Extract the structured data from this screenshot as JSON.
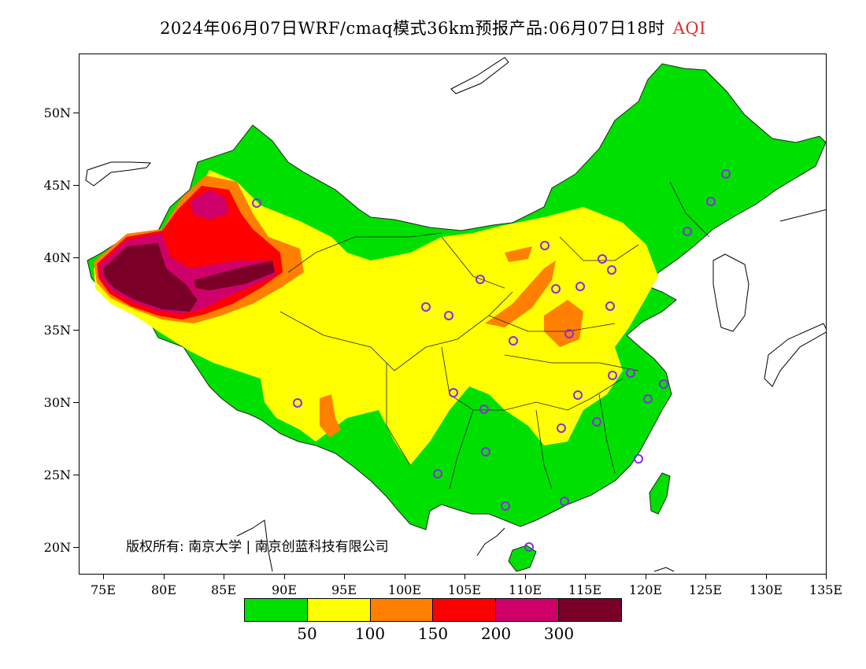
{
  "title": {
    "text": "2024年06月07日WRF/cmaq模式36km预报产品:06月07日18时",
    "variable": "AQI"
  },
  "map": {
    "lat_labels": [
      "50N",
      "45N",
      "40N",
      "35N",
      "30N",
      "25N",
      "20N"
    ],
    "lon_labels": [
      "75E",
      "80E",
      "85E",
      "90E",
      "95E",
      "100E",
      "105E",
      "110E",
      "115E",
      "120E",
      "125E",
      "130E",
      "135E"
    ],
    "copyright": "版权所有: 南京大学 | 南京创蓝科技有限公司",
    "station_marker_color": "#8a2be2"
  },
  "legend": {
    "colors": [
      "#00e000",
      "#ffff00",
      "#ff8000",
      "#ff0000",
      "#d0006a",
      "#7a0028"
    ],
    "labels": [
      "50",
      "100",
      "150",
      "200",
      "300"
    ]
  }
}
